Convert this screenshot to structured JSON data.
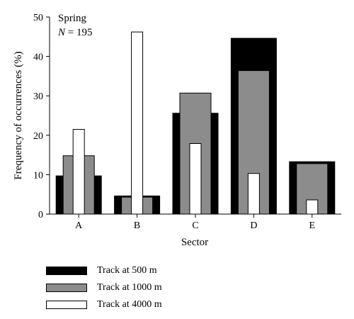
{
  "chart_data": {
    "type": "bar",
    "variant": "nested-overlapping",
    "annotation": {
      "season": "Spring",
      "n_label": "N",
      "n_value": "195"
    },
    "xlabel": "Sector",
    "ylabel": "Frequency of occurrences (%)",
    "ylim": [
      0,
      50
    ],
    "yticks": [
      0,
      10,
      20,
      30,
      40,
      50
    ],
    "categories": [
      "A",
      "B",
      "C",
      "D",
      "E"
    ],
    "series": [
      {
        "name": "Track at 500 m",
        "color": "#000000",
        "values": [
          9.7,
          4.6,
          25.6,
          44.6,
          13.3
        ]
      },
      {
        "name": "Track at 1000 m",
        "color": "#8c8c8c",
        "values": [
          14.8,
          4.3,
          30.7,
          36.4,
          12.8
        ]
      },
      {
        "name": "Track at 4000 m",
        "color": "#ffffff",
        "values": [
          21.5,
          46.2,
          17.9,
          10.3,
          3.6
        ]
      }
    ],
    "legend_placement": "bottom-left",
    "grid": false
  }
}
